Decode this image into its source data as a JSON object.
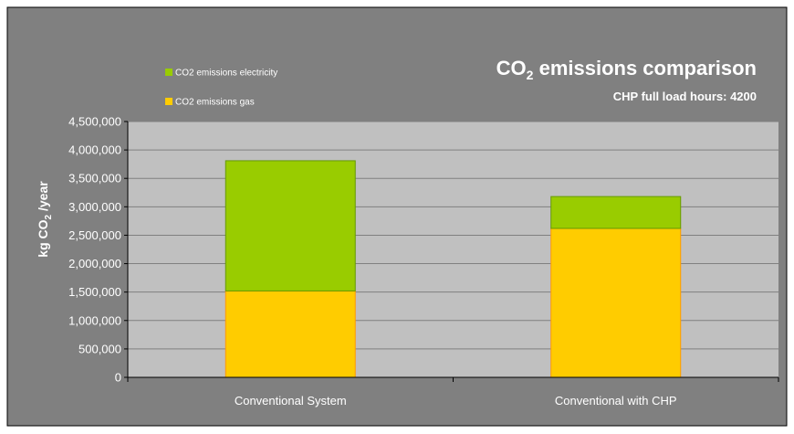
{
  "chart_data": {
    "type": "bar",
    "stacked": true,
    "title_main": "CO",
    "title_sub": "2",
    "title_rest": " emissions comparison",
    "subtitle": "CHP full load hours: 4200",
    "ylabel_main": "kg CO",
    "ylabel_sub": "2",
    "ylabel_rest": " /year",
    "xlabel": "",
    "categories": [
      "Conventional System",
      "Conventional with CHP"
    ],
    "ylim": [
      0,
      4500000
    ],
    "yticks": [
      0,
      500000,
      1000000,
      1500000,
      2000000,
      2500000,
      3000000,
      3500000,
      4000000,
      4500000
    ],
    "ytick_labels": [
      "0",
      "500,000",
      "1,000,000",
      "1,500,000",
      "2,000,000",
      "2,500,000",
      "3,000,000",
      "3,500,000",
      "4,000,000",
      "4,500,000"
    ],
    "series": [
      {
        "name": "CO2 emissions gas",
        "color": "#ffcc00",
        "edge": "#ff9900",
        "values": [
          1520000,
          2620000
        ]
      },
      {
        "name": "CO2 emissions electricity",
        "color": "#99cc00",
        "edge": "#669900",
        "values": [
          2290000,
          560000
        ]
      }
    ],
    "legend_order": [
      1,
      0
    ],
    "legend_position": "top-left",
    "grid": true,
    "colors": {
      "background": "#808080",
      "plot_area": "#c0c0c0",
      "gridline": "#808080",
      "text": "#ffffff"
    }
  }
}
